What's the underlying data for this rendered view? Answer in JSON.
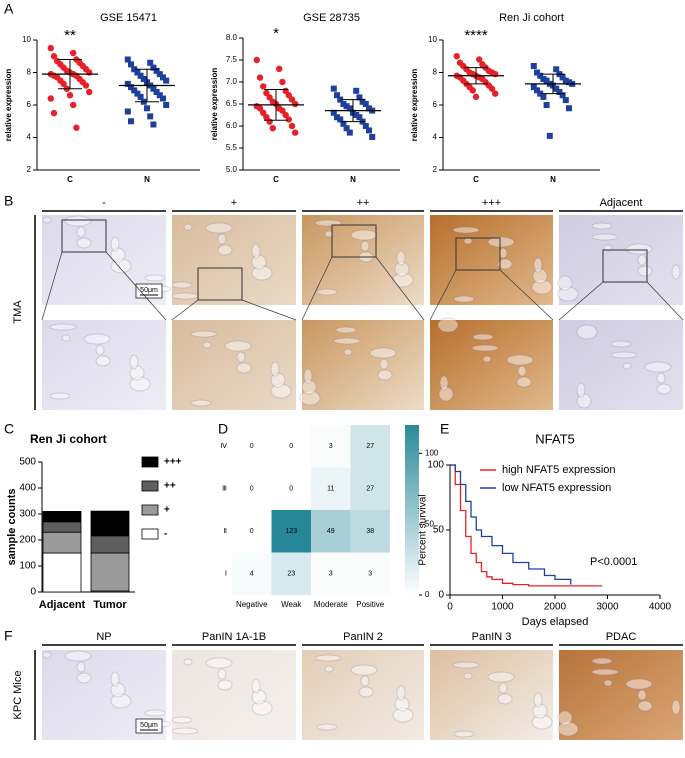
{
  "figure": {
    "panel_letters": [
      "A",
      "B",
      "C",
      "D",
      "E",
      "F"
    ],
    "tma": {
      "row_label": "TMA",
      "columns": [
        "-",
        "+",
        "++",
        "+++",
        "Adjacent"
      ],
      "scale_bar": "50μm"
    },
    "kpc": {
      "row_label": "KPC Mice",
      "columns": [
        "NP",
        "PanIN 1A-1B",
        "PanIN 2",
        "PanIN 3",
        "PDAC"
      ],
      "scale_bar": "50μm"
    }
  },
  "chart_data": [
    {
      "type": "dot",
      "title": "GSE 15471",
      "ylabel": "relative expression",
      "categories": [
        "C",
        "N"
      ],
      "significance": "**",
      "ylim": [
        2,
        10
      ],
      "yticks": [
        2,
        4,
        6,
        8,
        10
      ],
      "groups": [
        {
          "color": "#e8202a",
          "mean": 7.9,
          "sd": 0.9,
          "values": [
            9.5,
            9.2,
            9.0,
            8.8,
            8.7,
            8.6,
            8.5,
            8.4,
            8.3,
            8.2,
            8.1,
            8.0,
            8.0,
            7.9,
            7.9,
            7.8,
            7.8,
            7.7,
            7.6,
            7.5,
            7.4,
            7.3,
            7.2,
            7.0,
            6.8,
            6.6,
            6.4,
            6.0,
            5.5,
            4.6
          ]
        },
        {
          "color": "#1f3f9e",
          "mean": 7.2,
          "sd": 1.0,
          "values": [
            8.8,
            8.6,
            8.5,
            8.3,
            8.2,
            8.1,
            8.0,
            7.9,
            7.8,
            7.7,
            7.6,
            7.5,
            7.4,
            7.3,
            7.2,
            7.1,
            7.0,
            6.9,
            6.8,
            6.7,
            6.6,
            6.5,
            6.4,
            6.2,
            6.0,
            5.8,
            5.6,
            5.3,
            5.0,
            4.8
          ]
        }
      ]
    },
    {
      "type": "dot",
      "title": "GSE 28735",
      "ylabel": "relative expression",
      "categories": [
        "C",
        "N"
      ],
      "significance": "*",
      "ylim": [
        5,
        8
      ],
      "yticks": [
        {
          "value": 5,
          "label": "5.0"
        },
        {
          "value": 5.5,
          "label": "5.5"
        },
        {
          "value": 6,
          "label": "6.0"
        },
        {
          "value": 6.5,
          "label": "6.5"
        },
        {
          "value": 7,
          "label": "7.0"
        },
        {
          "value": 7.5,
          "label": "7.5"
        },
        {
          "value": 8,
          "label": "8.0"
        }
      ],
      "groups": [
        {
          "color": "#e8202a",
          "mean": 6.48,
          "sd": 0.35,
          "values": [
            7.5,
            7.3,
            7.1,
            7.0,
            6.9,
            6.8,
            6.75,
            6.7,
            6.65,
            6.6,
            6.55,
            6.5,
            6.5,
            6.45,
            6.4,
            6.4,
            6.35,
            6.3,
            6.25,
            6.2,
            6.15,
            6.1,
            6.0,
            5.95,
            5.85
          ]
        },
        {
          "color": "#1f3f9e",
          "mean": 6.35,
          "sd": 0.25,
          "values": [
            6.85,
            6.8,
            6.7,
            6.65,
            6.6,
            6.55,
            6.5,
            6.5,
            6.45,
            6.4,
            6.4,
            6.35,
            6.3,
            6.3,
            6.25,
            6.2,
            6.2,
            6.15,
            6.1,
            6.05,
            6.0,
            5.95,
            5.9,
            5.85,
            5.75
          ]
        }
      ]
    },
    {
      "type": "dot",
      "title": "Ren Ji cohort",
      "ylabel": "relative expression",
      "categories": [
        "C",
        "N"
      ],
      "significance": "****",
      "ylim": [
        2,
        10
      ],
      "yticks": [
        2,
        4,
        6,
        8,
        10
      ],
      "groups": [
        {
          "color": "#e8202a",
          "mean": 7.8,
          "sd": 0.5,
          "values": [
            9.0,
            8.8,
            8.6,
            8.5,
            8.4,
            8.3,
            8.2,
            8.1,
            8.0,
            8.0,
            7.9,
            7.9,
            7.8,
            7.8,
            7.7,
            7.7,
            7.6,
            7.5,
            7.4,
            7.3,
            7.2,
            7.1,
            7.0,
            6.9,
            6.7,
            6.5
          ]
        },
        {
          "color": "#1f3f9e",
          "mean": 7.3,
          "sd": 0.6,
          "values": [
            8.4,
            8.2,
            8.0,
            7.9,
            7.8,
            7.7,
            7.6,
            7.5,
            7.5,
            7.4,
            7.3,
            7.3,
            7.2,
            7.1,
            7.0,
            6.9,
            6.8,
            6.7,
            6.6,
            6.5,
            6.3,
            6.0,
            5.8,
            4.1
          ]
        }
      ]
    },
    {
      "type": "stacked_bar",
      "title": "Ren Ji cohort",
      "ylabel": "sample counts",
      "categories": [
        "Adjacent",
        "Tumor"
      ],
      "ylim": [
        0,
        500
      ],
      "yticks": [
        0,
        100,
        200,
        300,
        400,
        500
      ],
      "series": [
        {
          "name": "-",
          "color": "#ffffff",
          "values": [
            150,
            4
          ]
        },
        {
          "name": "+",
          "color": "#9a9a9a",
          "values": [
            80,
            146
          ]
        },
        {
          "name": "++",
          "color": "#5e5e5e",
          "values": [
            40,
            66
          ]
        },
        {
          "name": "+++",
          "color": "#000000",
          "values": [
            40,
            95
          ]
        }
      ]
    },
    {
      "type": "heatmap",
      "columns": [
        "Negative",
        "Weak",
        "Moderate",
        "Positive"
      ],
      "rows": [
        "Ⅳ",
        "Ⅲ",
        "Ⅱ",
        "Ⅰ"
      ],
      "values": [
        [
          0,
          0,
          3,
          27
        ],
        [
          0,
          0,
          11,
          27
        ],
        [
          0,
          123,
          49,
          38
        ],
        [
          4,
          23,
          3,
          3
        ]
      ],
      "clim": [
        0,
        120
      ],
      "cticks": [
        0,
        50,
        100
      ],
      "color": "#2a8a9a"
    },
    {
      "type": "survival",
      "title": "NFAT5",
      "xlabel": "Days elapsed",
      "ylabel": "Percent survival",
      "annotation": "P<0.0001",
      "xlim": [
        0,
        4000
      ],
      "xticks": [
        0,
        1000,
        2000,
        3000,
        4000
      ],
      "ylim": [
        0,
        100
      ],
      "yticks": [
        0,
        50,
        100
      ],
      "series": [
        {
          "name": "high NFAT5 expression",
          "color": "#e8202a",
          "x": [
            0,
            100,
            200,
            300,
            400,
            500,
            600,
            700,
            800,
            1000,
            1200,
            1500,
            2000,
            2900
          ],
          "values": [
            100,
            85,
            65,
            45,
            32,
            25,
            18,
            14,
            12,
            9,
            8,
            7,
            7,
            7
          ]
        },
        {
          "name": "low NFAT5 expression",
          "color": "#1f3f9e",
          "x": [
            0,
            100,
            200,
            300,
            400,
            500,
            600,
            800,
            1000,
            1200,
            1500,
            1800,
            2000,
            2300
          ],
          "values": [
            100,
            95,
            85,
            72,
            60,
            50,
            45,
            38,
            32,
            25,
            20,
            15,
            12,
            8
          ]
        }
      ]
    }
  ]
}
